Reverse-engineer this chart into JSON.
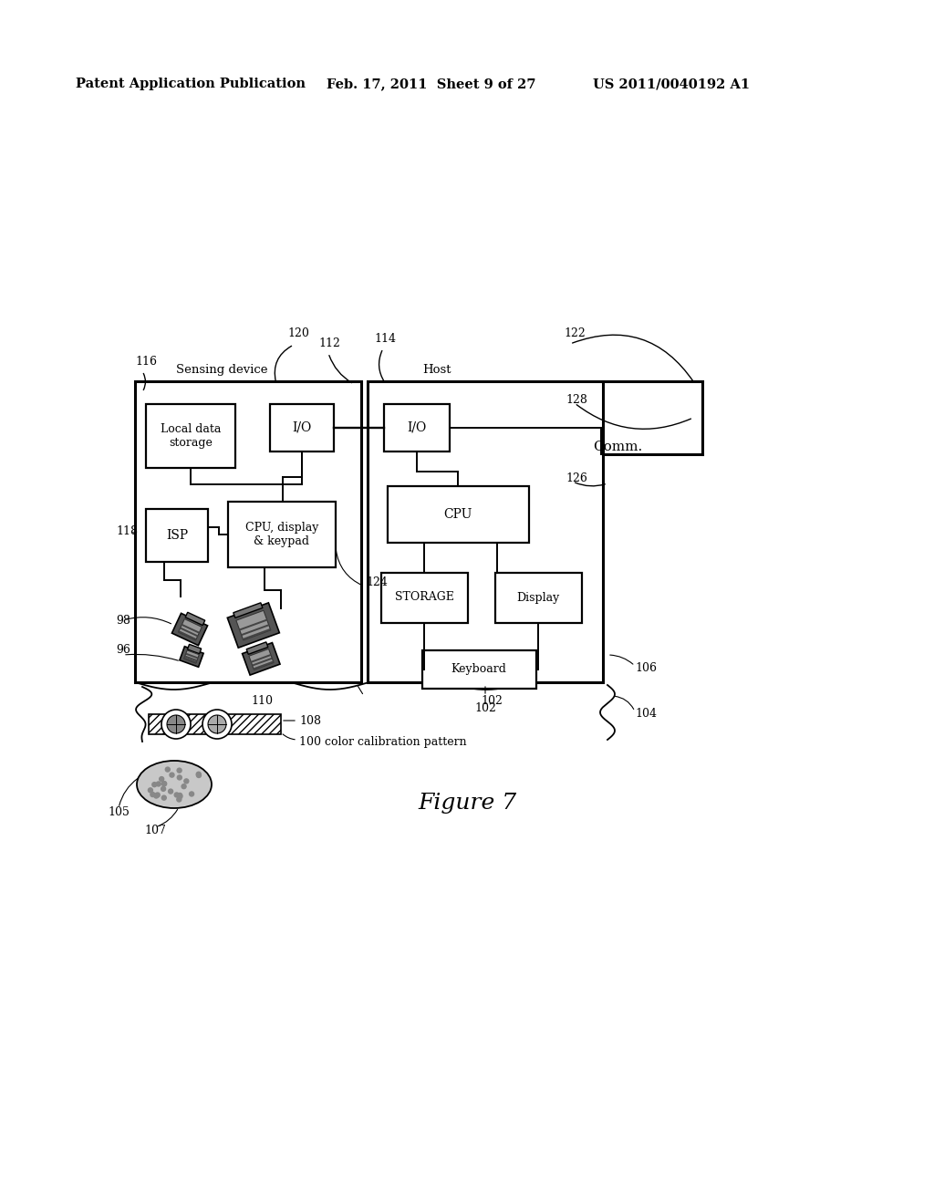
{
  "bg_color": "#ffffff",
  "header_left": "Patent Application Publication",
  "header_mid": "Feb. 17, 2011  Sheet 9 of 27",
  "header_right": "US 2011/0040192 A1",
  "figure_caption": "Figure 7",
  "sensing_device_label": "Sensing device",
  "host_label": "Host",
  "comm_label": "Comm.",
  "label_116": "116",
  "label_112": "112",
  "label_114": "114",
  "label_120": "120",
  "label_122": "122",
  "label_128": "128",
  "label_118": "118",
  "label_124": "124",
  "label_126": "126",
  "label_98": "98",
  "label_96": "96",
  "label_110": "110",
  "label_108": "108",
  "label_102": "102",
  "label_104": "104",
  "label_106": "106",
  "label_105": "105",
  "label_107": "107",
  "label_100": "100 color calibration pattern",
  "box_local_data": "Local data\nstorage",
  "box_io_sensing": "I/O",
  "box_io_host": "I/O",
  "box_isp": "ISP",
  "box_cpu_display": "CPU, display\n& keypad",
  "box_cpu_host": "CPU",
  "box_storage": "STORAGE",
  "box_display": "Display",
  "box_keyboard": "Keyboard"
}
